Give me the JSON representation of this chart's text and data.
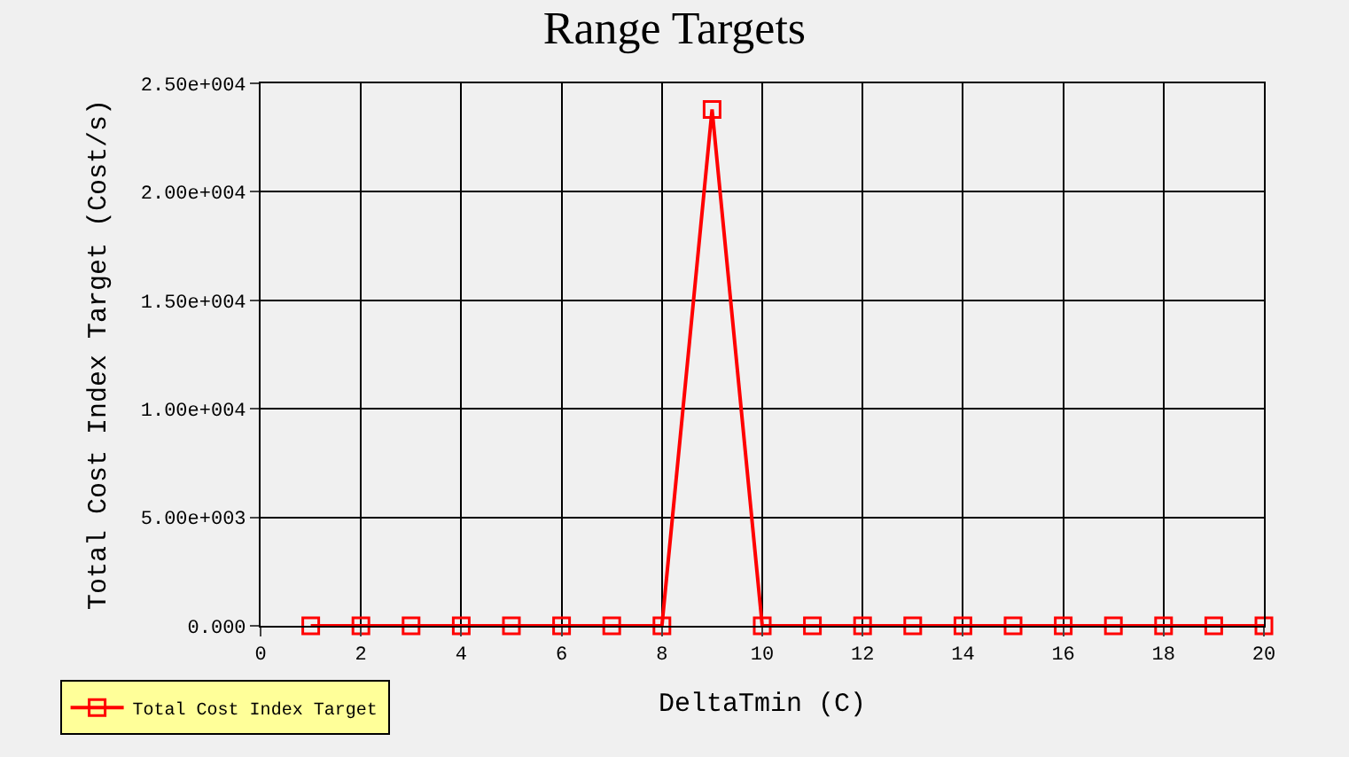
{
  "chart_data": {
    "type": "line",
    "title": "Range Targets",
    "xlabel": "DeltaTmin (C)",
    "ylabel": "Total Cost Index Target (Cost/s)",
    "x": [
      1,
      2,
      3,
      4,
      5,
      6,
      7,
      8,
      9,
      10,
      11,
      12,
      13,
      14,
      15,
      16,
      17,
      18,
      19,
      20
    ],
    "series": [
      {
        "name": "Total Cost Index Target",
        "color": "#ff0000",
        "values": [
          0,
          0,
          0,
          0,
          0,
          0,
          0,
          0,
          23800,
          0,
          0,
          0,
          0,
          0,
          0,
          0,
          0,
          0,
          0,
          0
        ]
      }
    ],
    "xlim": [
      0,
      20
    ],
    "xticks": [
      0,
      2,
      4,
      6,
      8,
      10,
      12,
      14,
      16,
      18,
      20
    ],
    "ylim": [
      0,
      25000
    ],
    "yticks": [
      {
        "value": 0,
        "label": "0.000"
      },
      {
        "value": 5000,
        "label": "5.00e+003"
      },
      {
        "value": 10000,
        "label": "1.00e+004"
      },
      {
        "value": 15000,
        "label": "1.50e+004"
      },
      {
        "value": 20000,
        "label": "2.00e+004"
      },
      {
        "value": 25000,
        "label": "2.50e+004"
      }
    ],
    "grid": true,
    "legend": "bottom left",
    "marker": "square",
    "line_style": "solid"
  }
}
